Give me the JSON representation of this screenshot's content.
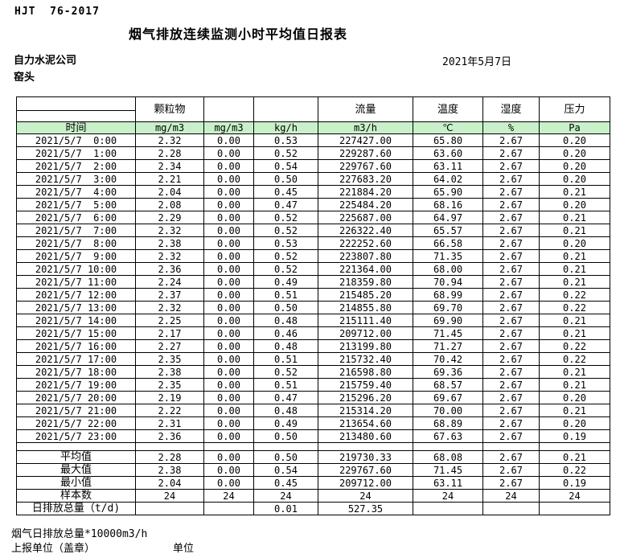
{
  "page": {
    "doc_code": "HJT  76-2017",
    "title": "烟气排放连续监测小时平均值日报表",
    "company": "自力水泥公司",
    "station": "窑头",
    "date": "2021年5月7日"
  },
  "colors": {
    "header_green": "#c9f0c9"
  },
  "table": {
    "time_label": "时间",
    "group_headers": [
      "颗粒物",
      "",
      "",
      "流量",
      "温度",
      "湿度",
      "压力"
    ],
    "units": [
      "mg/m3",
      "mg/m3",
      "kg/h",
      "m3/h",
      "℃",
      "%",
      "Pa"
    ],
    "rows": [
      {
        "time": "2021/5/7  0:00",
        "values": [
          "2.32",
          "0.00",
          "0.53",
          "227427.00",
          "65.80",
          "2.67",
          "0.20"
        ]
      },
      {
        "time": "2021/5/7  1:00",
        "values": [
          "2.28",
          "0.00",
          "0.52",
          "229287.60",
          "63.60",
          "2.67",
          "0.20"
        ]
      },
      {
        "time": "2021/5/7  2:00",
        "values": [
          "2.34",
          "0.00",
          "0.54",
          "229767.60",
          "63.11",
          "2.67",
          "0.20"
        ]
      },
      {
        "time": "2021/5/7  3:00",
        "values": [
          "2.21",
          "0.00",
          "0.50",
          "227683.20",
          "64.02",
          "2.67",
          "0.20"
        ]
      },
      {
        "time": "2021/5/7  4:00",
        "values": [
          "2.04",
          "0.00",
          "0.45",
          "221884.20",
          "65.90",
          "2.67",
          "0.21"
        ]
      },
      {
        "time": "2021/5/7  5:00",
        "values": [
          "2.08",
          "0.00",
          "0.47",
          "225484.20",
          "68.16",
          "2.67",
          "0.20"
        ]
      },
      {
        "time": "2021/5/7  6:00",
        "values": [
          "2.29",
          "0.00",
          "0.52",
          "225687.00",
          "64.97",
          "2.67",
          "0.21"
        ]
      },
      {
        "time": "2021/5/7  7:00",
        "values": [
          "2.32",
          "0.00",
          "0.52",
          "226322.40",
          "65.57",
          "2.67",
          "0.21"
        ]
      },
      {
        "time": "2021/5/7  8:00",
        "values": [
          "2.38",
          "0.00",
          "0.53",
          "222252.60",
          "66.58",
          "2.67",
          "0.20"
        ]
      },
      {
        "time": "2021/5/7  9:00",
        "values": [
          "2.32",
          "0.00",
          "0.52",
          "223807.80",
          "71.35",
          "2.67",
          "0.21"
        ]
      },
      {
        "time": "2021/5/7 10:00",
        "values": [
          "2.36",
          "0.00",
          "0.52",
          "221364.00",
          "68.00",
          "2.67",
          "0.21"
        ]
      },
      {
        "time": "2021/5/7 11:00",
        "values": [
          "2.24",
          "0.00",
          "0.49",
          "218359.80",
          "70.94",
          "2.67",
          "0.21"
        ]
      },
      {
        "time": "2021/5/7 12:00",
        "values": [
          "2.37",
          "0.00",
          "0.51",
          "215485.20",
          "68.99",
          "2.67",
          "0.22"
        ]
      },
      {
        "time": "2021/5/7 13:00",
        "values": [
          "2.32",
          "0.00",
          "0.50",
          "214855.80",
          "69.70",
          "2.67",
          "0.22"
        ]
      },
      {
        "time": "2021/5/7 14:00",
        "values": [
          "2.25",
          "0.00",
          "0.48",
          "215111.40",
          "69.90",
          "2.67",
          "0.21"
        ]
      },
      {
        "time": "2021/5/7 15:00",
        "values": [
          "2.17",
          "0.00",
          "0.46",
          "209712.00",
          "71.45",
          "2.67",
          "0.21"
        ]
      },
      {
        "time": "2021/5/7 16:00",
        "values": [
          "2.27",
          "0.00",
          "0.48",
          "213199.80",
          "71.27",
          "2.67",
          "0.22"
        ]
      },
      {
        "time": "2021/5/7 17:00",
        "values": [
          "2.35",
          "0.00",
          "0.51",
          "215732.40",
          "70.42",
          "2.67",
          "0.22"
        ]
      },
      {
        "time": "2021/5/7 18:00",
        "values": [
          "2.38",
          "0.00",
          "0.52",
          "216598.80",
          "69.36",
          "2.67",
          "0.21"
        ]
      },
      {
        "time": "2021/5/7 19:00",
        "values": [
          "2.35",
          "0.00",
          "0.51",
          "215759.40",
          "68.57",
          "2.67",
          "0.21"
        ]
      },
      {
        "time": "2021/5/7 20:00",
        "values": [
          "2.19",
          "0.00",
          "0.47",
          "215296.20",
          "69.67",
          "2.67",
          "0.20"
        ]
      },
      {
        "time": "2021/5/7 21:00",
        "values": [
          "2.22",
          "0.00",
          "0.48",
          "215314.20",
          "70.00",
          "2.67",
          "0.21"
        ]
      },
      {
        "time": "2021/5/7 22:00",
        "values": [
          "2.31",
          "0.00",
          "0.49",
          "213654.60",
          "68.89",
          "2.67",
          "0.20"
        ]
      },
      {
        "time": "2021/5/7 23:00",
        "values": [
          "2.36",
          "0.00",
          "0.50",
          "213480.60",
          "67.63",
          "2.67",
          "0.19"
        ]
      }
    ],
    "summary": [
      {
        "label": "平均值",
        "values": [
          "2.28",
          "0.00",
          "0.50",
          "219730.33",
          "68.08",
          "2.67",
          "0.21"
        ]
      },
      {
        "label": "最大值",
        "values": [
          "2.38",
          "0.00",
          "0.54",
          "229767.60",
          "71.45",
          "2.67",
          "0.22"
        ]
      },
      {
        "label": "最小值",
        "values": [
          "2.04",
          "0.00",
          "0.45",
          "209712.00",
          "63.11",
          "2.67",
          "0.19"
        ]
      },
      {
        "label": "样本数",
        "values": [
          "24",
          "24",
          "24",
          "24",
          "24",
          "24",
          "24"
        ]
      },
      {
        "label": "日排放总量（t/d)",
        "values": [
          "",
          "",
          "0.01",
          "527.35",
          "",
          "",
          ""
        ]
      }
    ]
  },
  "footer": {
    "note": "烟气日排放总量*10000m3/h",
    "report_unit_label": "上报单位（盖章）",
    "unit_label": "单位"
  }
}
